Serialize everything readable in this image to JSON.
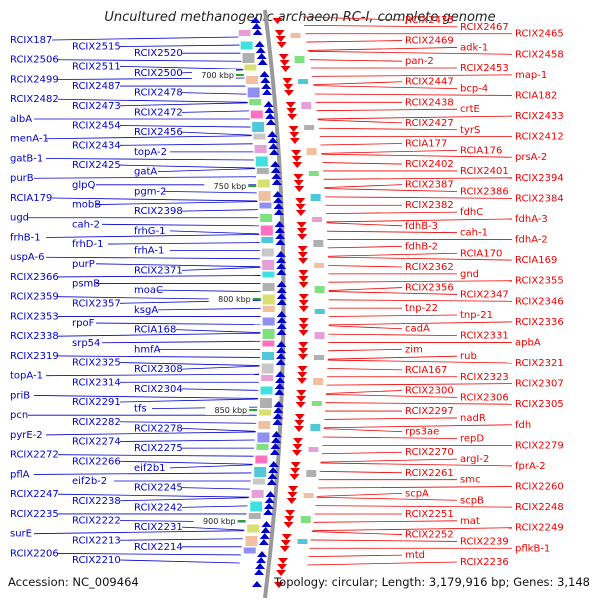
{
  "title": "Uncultured methanogenic archaeon RC-I, complete genome",
  "footer": {
    "accession": "Accession: NC_009464",
    "summary": "Topology: circular; Length: 3,179,916 bp; Genes: 3,148"
  },
  "colors": {
    "minus_strand": "#0000cc",
    "plus_strand": "#ee0000",
    "backbone": "#999999"
  },
  "scale_ticks": [
    "700 kbp",
    "750 kbp",
    "800 kbp",
    "850 kbp",
    "900 kbp"
  ],
  "left_labels": [
    "RCIX187",
    "RCIX2515",
    "RCIX2520",
    "RCIX2506",
    "RCIX2511",
    "RCIX2500",
    "RCIX2499",
    "RCIX2487",
    "RCIX2478",
    "RCIX2482",
    "RCIX2473",
    "RCIX2472",
    "albA",
    "RCIX2454",
    "RCIX2456",
    "menA-1",
    "RCIX2434",
    "topA-2",
    "gatB-1",
    "RCIX2425",
    "gatA",
    "purB",
    "glpQ",
    "pgm-2",
    "RCIA179",
    "mobB",
    "RCIX2398",
    "ugd",
    "cah-2",
    "frhG-1",
    "frhB-1",
    "frhD-1",
    "frhA-1",
    "uspA-6",
    "purP",
    "RCIX2371",
    "RCIX2366",
    "psmB",
    "moaC",
    "RCIX2359",
    "RCIX2357",
    "ksgA",
    "RCIX2353",
    "rpoF",
    "RCIA168",
    "RCIX2338",
    "srp54",
    "hmfA",
    "RCIX2319",
    "RCIX2325",
    "RCIX2308",
    "topA-1",
    "RCIX2314",
    "RCIX2304",
    "priB",
    "RCIX2291",
    "tfs",
    "pcn",
    "RCIX2282",
    "RCIX2278",
    "pyrE-2",
    "RCIX2274",
    "RCIX2275",
    "RCIX2272",
    "RCIX2266",
    "eif2b1",
    "pflA",
    "eif2b-2",
    "RCIX2245",
    "RCIX2247",
    "RCIX2238",
    "RCIX2242",
    "RCIX2235",
    "RCIX2222",
    "RCIX2231",
    "surE",
    "RCIX2213",
    "RCIX2214",
    "RCIX2206",
    "RCIX2210"
  ],
  "right_labels": [
    "RCIX2475",
    "RCIX2467",
    "RCIX2465",
    "RCIX2469",
    "adk-1",
    "RCIX2458",
    "pan-2",
    "RCIX2453",
    "map-1",
    "RCIX2447",
    "bcp-4",
    "RCIA182",
    "RCIX2438",
    "crtE",
    "RCIX2433",
    "RCIX2427",
    "tyrS",
    "RCIX2412",
    "RCIA177",
    "RCIA176",
    "prsA-2",
    "RCIX2402",
    "RCIX2401",
    "RCIX2394",
    "RCIX2387",
    "RCIX2386",
    "RCIX2384",
    "RCIX2382",
    "fdhC",
    "fdhA-3",
    "fdhB-3",
    "cah-1",
    "fdhA-2",
    "fdhB-2",
    "RCIA170",
    "RCIA169",
    "RCIX2362",
    "gnd",
    "RCIX2355",
    "RCIX2356",
    "RCIX2347",
    "RCIX2346",
    "tnp-22",
    "tnp-21",
    "RCIX2336",
    "cadA",
    "RCIX2331",
    "apbA",
    "zim",
    "rub",
    "RCIX2321",
    "RCIA167",
    "RCIX2323",
    "RCIX2307",
    "RCIX2300",
    "RCIX2306",
    "RCIX2305",
    "RCIX2297",
    "nadR",
    "fdh",
    "rps3ae",
    "repD",
    "RCIX2279",
    "RCIX2270",
    "argI-2",
    "fprA-2",
    "RCIX2261",
    "smc",
    "RCIX2260",
    "scpA",
    "scpB",
    "RCIX2248",
    "RCIX2251",
    "mat",
    "RCIX2249",
    "RCIX2252",
    "RCIX2239",
    "pflkB-1",
    "mtd",
    "RCIX2236"
  ]
}
